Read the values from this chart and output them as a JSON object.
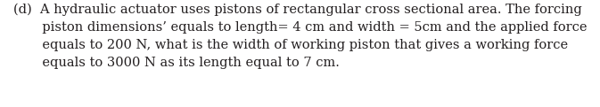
{
  "text": "(d)  A hydraulic actuator uses pistons of rectangular cross sectional area. The forcing\n       piston dimensions’ equals to length= 4 cm and width = 5cm and the applied force\n       equals to 200 N, what is the width of working piston that gives a working force\n       equals to 3000 N as its length equal to 7 cm.",
  "font_size": 10.5,
  "font_family": "serif",
  "text_color": "#231f20",
  "background_color": "#ffffff"
}
